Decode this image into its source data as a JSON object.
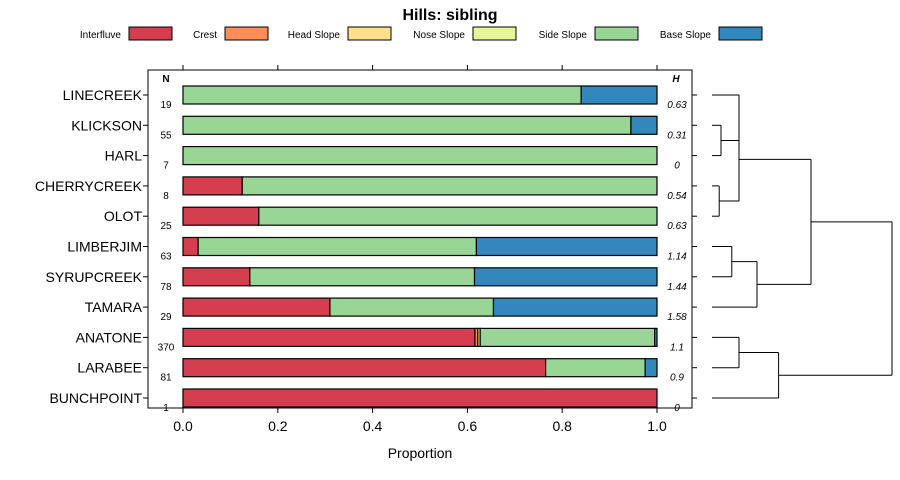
{
  "chart_data": {
    "type": "bar",
    "orientation": "horizontal",
    "stacked": true,
    "title": "Hills: sibling",
    "xlabel": "Proportion",
    "ylabel": "",
    "xlim": [
      0,
      1
    ],
    "x_ticks": [
      "0.0",
      "0.2",
      "0.4",
      "0.6",
      "0.8",
      "1.0"
    ],
    "x_tick_values": [
      0,
      0.2,
      0.4,
      0.6,
      0.8,
      1.0
    ],
    "legend_position": "top",
    "series": [
      {
        "name": "Interfluve",
        "color": "#d53e4f"
      },
      {
        "name": "Crest",
        "color": "#fc8d59"
      },
      {
        "name": "Head Slope",
        "color": "#fee08b"
      },
      {
        "name": "Nose Slope",
        "color": "#e6f598"
      },
      {
        "name": "Side Slope",
        "color": "#99d594"
      },
      {
        "name": "Base Slope",
        "color": "#3288bd"
      }
    ],
    "n_header": "N",
    "h_header": "H",
    "categories": [
      {
        "name": "LINECREEK",
        "n": "19",
        "h": "0.63",
        "values": [
          0,
          0,
          0,
          0,
          0.84,
          0.16
        ]
      },
      {
        "name": "KLICKSON",
        "n": "55",
        "h": "0.31",
        "values": [
          0,
          0,
          0,
          0,
          0.945,
          0.055
        ]
      },
      {
        "name": "HARL",
        "n": "7",
        "h": "0",
        "values": [
          0,
          0,
          0,
          0,
          1.0,
          0
        ]
      },
      {
        "name": "CHERRYCREEK",
        "n": "8",
        "h": "0.54",
        "values": [
          0.125,
          0,
          0,
          0,
          0.875,
          0
        ]
      },
      {
        "name": "OLOT",
        "n": "25",
        "h": "0.63",
        "values": [
          0.16,
          0,
          0,
          0,
          0.84,
          0
        ]
      },
      {
        "name": "LIMBERJIM",
        "n": "63",
        "h": "1.14",
        "values": [
          0.032,
          0,
          0,
          0,
          0.587,
          0.381
        ]
      },
      {
        "name": "SYRUPCREEK",
        "n": "78",
        "h": "1.44",
        "values": [
          0.141,
          0,
          0,
          0,
          0.474,
          0.385
        ]
      },
      {
        "name": "TAMARA",
        "n": "29",
        "h": "1.58",
        "values": [
          0.31,
          0,
          0,
          0,
          0.345,
          0.345
        ]
      },
      {
        "name": "ANATONE",
        "n": "370",
        "h": "1.1",
        "values": [
          0.616,
          0.006,
          0.005,
          0,
          0.368,
          0.005
        ]
      },
      {
        "name": "LARABEE",
        "n": "81",
        "h": "0.9",
        "values": [
          0.765,
          0,
          0,
          0,
          0.21,
          0.025
        ]
      },
      {
        "name": "BUNCHPOINT",
        "n": "1",
        "h": "0",
        "values": [
          1.0,
          0,
          0,
          0,
          0,
          0
        ]
      }
    ],
    "dendrogram": {
      "leaves": [
        "LINECREEK",
        "KLICKSON",
        "HARL",
        "CHERRYCREEK",
        "OLOT",
        "LIMBERJIM",
        "SYRUPCREEK",
        "TAMARA",
        "ANATONE",
        "LARABEE",
        "BUNCHPOINT"
      ],
      "merges": [
        {
          "a": "KLICKSON",
          "b": "HARL",
          "height": 0.05
        },
        {
          "a": "CHERRYCREEK",
          "b": "OLOT",
          "height": 0.04
        },
        {
          "a": "LINECREEK",
          "b": "m0",
          "height": 0.15
        },
        {
          "a": "m2",
          "b": "m1",
          "height": 0.15
        },
        {
          "a": "LIMBERJIM",
          "b": "SYRUPCREEK",
          "height": 0.11
        },
        {
          "a": "m4",
          "b": "TAMARA",
          "height": 0.25
        },
        {
          "a": "m3",
          "b": "m5",
          "height": 0.55
        },
        {
          "a": "ANATONE",
          "b": "LARABEE",
          "height": 0.15
        },
        {
          "a": "m7",
          "b": "BUNCHPOINT",
          "height": 0.37
        },
        {
          "a": "m6",
          "b": "m8",
          "height": 1.0
        }
      ]
    }
  }
}
